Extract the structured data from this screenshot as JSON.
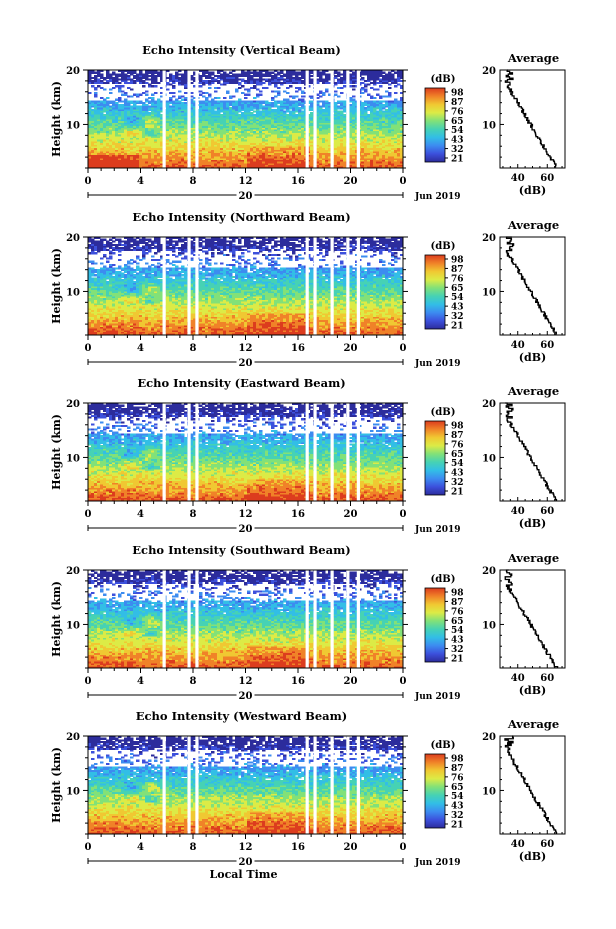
{
  "chart_data": [
    {
      "type": "heatmap",
      "title": "Echo Intensity (Vertical Beam)",
      "ylabel": "Height (km)",
      "xlim": [
        0,
        24
      ],
      "ylim": [
        2,
        20
      ],
      "x_ticks": [
        "0",
        "4",
        "8",
        "12",
        "16",
        "20",
        "0"
      ],
      "y_ticks": [
        "10",
        "20"
      ],
      "date_label": "20",
      "date_suffix": "Jun 2019",
      "colorbar": {
        "unit": "(dB)",
        "ticks": [
          "98",
          "87",
          "76",
          "65",
          "54",
          "43",
          "32",
          "21"
        ]
      },
      "gaps_h": [
        5.8,
        7.7,
        8.3,
        16.7,
        17.3,
        18.6,
        19.8,
        20.6
      ],
      "average": {
        "title": "Average",
        "xlabel": "(dB)",
        "x_ticks": [
          "40",
          "60"
        ],
        "y_ticks": [
          "10",
          "20"
        ],
        "xlim": [
          28,
          72
        ]
      }
    },
    {
      "type": "heatmap",
      "title": "Echo Intensity (Northward Beam)",
      "ylabel": "Height (km)",
      "xlim": [
        0,
        24
      ],
      "ylim": [
        2,
        20
      ],
      "x_ticks": [
        "0",
        "4",
        "8",
        "12",
        "16",
        "20",
        "0"
      ],
      "y_ticks": [
        "10",
        "20"
      ],
      "date_label": "20",
      "date_suffix": "Jun 2019",
      "colorbar": {
        "unit": "(dB)",
        "ticks": [
          "98",
          "87",
          "76",
          "65",
          "54",
          "43",
          "32",
          "21"
        ]
      },
      "gaps_h": [
        5.8,
        7.7,
        8.3,
        16.7,
        17.3,
        18.6,
        19.8,
        20.6
      ],
      "average": {
        "title": "Average",
        "xlabel": "(dB)",
        "x_ticks": [
          "40",
          "60"
        ],
        "y_ticks": [
          "10",
          "20"
        ],
        "xlim": [
          28,
          72
        ]
      }
    },
    {
      "type": "heatmap",
      "title": "Echo Intensity (Eastward Beam)",
      "ylabel": "Height (km)",
      "xlim": [
        0,
        24
      ],
      "ylim": [
        2,
        20
      ],
      "x_ticks": [
        "0",
        "4",
        "8",
        "12",
        "16",
        "20",
        "0"
      ],
      "y_ticks": [
        "10",
        "20"
      ],
      "date_label": "20",
      "date_suffix": "Jun 2019",
      "colorbar": {
        "unit": "(dB)",
        "ticks": [
          "98",
          "87",
          "76",
          "65",
          "54",
          "43",
          "32",
          "21"
        ]
      },
      "gaps_h": [
        5.8,
        7.7,
        8.3,
        16.7,
        17.3,
        18.6,
        19.8,
        20.6
      ],
      "average": {
        "title": "Average",
        "xlabel": "(dB)",
        "x_ticks": [
          "40",
          "60"
        ],
        "y_ticks": [
          "10",
          "20"
        ],
        "xlim": [
          28,
          72
        ]
      }
    },
    {
      "type": "heatmap",
      "title": "Echo Intensity (Southward Beam)",
      "ylabel": "Height (km)",
      "xlim": [
        0,
        24
      ],
      "ylim": [
        2,
        20
      ],
      "x_ticks": [
        "0",
        "4",
        "8",
        "12",
        "16",
        "20",
        "0"
      ],
      "y_ticks": [
        "10",
        "20"
      ],
      "date_label": "20",
      "date_suffix": "Jun 2019",
      "colorbar": {
        "unit": "(dB)",
        "ticks": [
          "98",
          "87",
          "76",
          "65",
          "54",
          "43",
          "32",
          "21"
        ]
      },
      "gaps_h": [
        5.8,
        7.7,
        8.3,
        16.7,
        17.3,
        18.6,
        19.8,
        20.6
      ],
      "average": {
        "title": "Average",
        "xlabel": "(dB)",
        "x_ticks": [
          "40",
          "60"
        ],
        "y_ticks": [
          "10",
          "20"
        ],
        "xlim": [
          28,
          72
        ]
      }
    },
    {
      "type": "heatmap",
      "title": "Echo Intensity (Westward Beam)",
      "ylabel": "Height (km)",
      "xlim": [
        0,
        24
      ],
      "ylim": [
        2,
        20
      ],
      "x_ticks": [
        "0",
        "4",
        "8",
        "12",
        "16",
        "20",
        "0"
      ],
      "y_ticks": [
        "10",
        "20"
      ],
      "date_label": "20",
      "date_suffix": "Jun 2019",
      "colorbar": {
        "unit": "(dB)",
        "ticks": [
          "98",
          "87",
          "76",
          "65",
          "54",
          "43",
          "32",
          "21"
        ]
      },
      "gaps_h": [
        5.8,
        7.7,
        8.3,
        16.7,
        17.3,
        18.6,
        19.8,
        20.6
      ],
      "average": {
        "title": "Average",
        "xlabel": "(dB)",
        "x_ticks": [
          "40",
          "60"
        ],
        "y_ticks": [
          "10",
          "20"
        ],
        "xlim": [
          28,
          72
        ]
      }
    }
  ],
  "xlabel": "Local Time",
  "colormap": [
    "#2c2c9c",
    "#3c50dc",
    "#3c8cf0",
    "#32bee6",
    "#46d2b4",
    "#82e178",
    "#dceb46",
    "#f0c832",
    "#f08228",
    "#dc3c1e"
  ]
}
